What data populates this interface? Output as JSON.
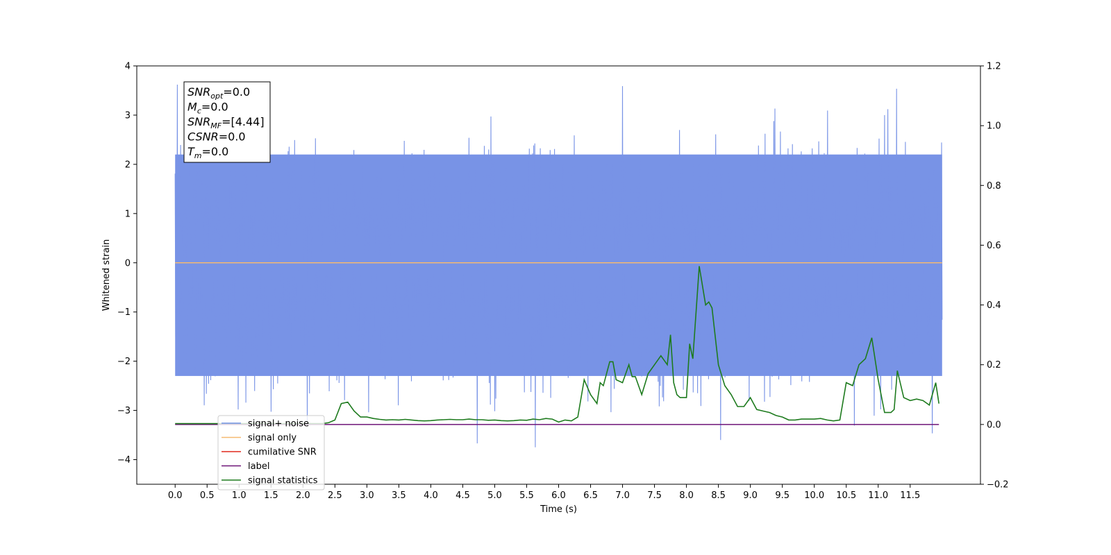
{
  "chart_data": {
    "type": "line",
    "xlabel": "Time (s)",
    "ylabel": "Whitened strain",
    "xlim": [
      -0.6,
      12.6
    ],
    "ylim": [
      -4.5,
      4.0
    ],
    "y2lim": [
      -0.2,
      1.2
    ],
    "x_ticks": [
      0.0,
      0.5,
      1.0,
      1.5,
      2.0,
      2.5,
      3.0,
      3.5,
      4.0,
      4.5,
      5.0,
      5.5,
      6.0,
      6.5,
      7.0,
      7.5,
      8.0,
      8.5,
      9.0,
      9.5,
      10.0,
      10.5,
      11.0,
      11.5
    ],
    "x_tick_labels": [
      "0.0",
      "0.5",
      "1.0",
      "1.5",
      "2.0",
      "2.5",
      "3.0",
      "3.5",
      "4.0",
      "4.5",
      "5.0",
      "5.5",
      "6.0",
      "6.5",
      "7.0",
      "7.5",
      "8.0",
      "8.5",
      "9.0",
      "9.5",
      "10.0",
      "10.5",
      "11.0",
      "11.5"
    ],
    "y_ticks": [
      -4,
      -3,
      -2,
      -1,
      0,
      1,
      2,
      3,
      4
    ],
    "y_tick_labels": [
      "−4",
      "−3",
      "−2",
      "−1",
      "0",
      "1",
      "2",
      "3",
      "4"
    ],
    "y2_ticks": [
      -0.2,
      0.0,
      0.2,
      0.4,
      0.6,
      0.8,
      1.0,
      1.2
    ],
    "y2_tick_labels": [
      "−0.2",
      "0.0",
      "0.2",
      "0.4",
      "0.6",
      "0.8",
      "1.0",
      "1.2"
    ],
    "grid": false,
    "legend_position": "lower-left",
    "annotation": {
      "lines": [
        {
          "sym": "SNR",
          "sub": "opt",
          "rest": "=0.0"
        },
        {
          "sym": "M",
          "sub": "c",
          "rest": "=0.0"
        },
        {
          "sym": "SNR",
          "sub": "MF",
          "rest": "=[4.44]"
        },
        {
          "sym": "CSNR",
          "sub": "",
          "rest": "=0.0"
        },
        {
          "sym": "T",
          "sub": "m",
          "rest": "=0.0"
        }
      ]
    },
    "noise": {
      "x_start": 0.0,
      "x_end": 12.0,
      "sample_count": 1400,
      "envelope_upper": 2.2,
      "envelope_lower": -2.3,
      "peak_max": 3.62,
      "peak_min": -3.75,
      "color": "#7893e6"
    },
    "series": [
      {
        "name": "signal+ noise",
        "color": "#6f8de3",
        "axis": "left"
      },
      {
        "name": "signal only",
        "color": "#f5b971",
        "axis": "left",
        "x": [
          0.0,
          12.0
        ],
        "y": [
          0.0,
          0.0
        ]
      },
      {
        "name": "cumilative SNR",
        "color": "#e0281d",
        "axis": "right",
        "x": [],
        "y": []
      },
      {
        "name": "label",
        "color": "#6d1377",
        "axis": "right",
        "x": [
          0.0,
          11.95
        ],
        "y": [
          0.0,
          0.0
        ]
      },
      {
        "name": "signal statistics",
        "color": "#1e7b1e",
        "axis": "right",
        "x": [
          0.0,
          2.3,
          2.4,
          2.5,
          2.6,
          2.7,
          2.8,
          2.9,
          3.0,
          3.1,
          3.2,
          3.3,
          3.4,
          3.5,
          3.6,
          3.7,
          3.8,
          3.9,
          4.0,
          4.1,
          4.2,
          4.3,
          4.4,
          4.5,
          4.6,
          4.7,
          4.8,
          4.9,
          5.0,
          5.1,
          5.2,
          5.3,
          5.4,
          5.5,
          5.6,
          5.7,
          5.8,
          5.9,
          6.0,
          6.1,
          6.2,
          6.3,
          6.4,
          6.5,
          6.6,
          6.65,
          6.7,
          6.8,
          6.85,
          6.9,
          7.0,
          7.1,
          7.15,
          7.2,
          7.3,
          7.4,
          7.5,
          7.6,
          7.7,
          7.75,
          7.8,
          7.85,
          7.9,
          8.0,
          8.05,
          8.1,
          8.2,
          8.3,
          8.35,
          8.4,
          8.5,
          8.6,
          8.7,
          8.8,
          8.9,
          9.0,
          9.1,
          9.2,
          9.3,
          9.4,
          9.5,
          9.6,
          9.7,
          9.8,
          9.9,
          10.0,
          10.1,
          10.2,
          10.3,
          10.4,
          10.5,
          10.6,
          10.7,
          10.8,
          10.9,
          11.0,
          11.1,
          11.2,
          11.25,
          11.3,
          11.4,
          11.5,
          11.6,
          11.7,
          11.8,
          11.9,
          11.95
        ],
        "y": [
          0.003,
          0.003,
          0.006,
          0.015,
          0.07,
          0.075,
          0.045,
          0.025,
          0.025,
          0.02,
          0.017,
          0.015,
          0.016,
          0.015,
          0.017,
          0.015,
          0.013,
          0.012,
          0.013,
          0.015,
          0.016,
          0.017,
          0.016,
          0.016,
          0.018,
          0.016,
          0.016,
          0.014,
          0.015,
          0.013,
          0.012,
          0.013,
          0.015,
          0.014,
          0.018,
          0.016,
          0.02,
          0.018,
          0.008,
          0.015,
          0.012,
          0.025,
          0.15,
          0.1,
          0.07,
          0.14,
          0.13,
          0.21,
          0.21,
          0.15,
          0.14,
          0.2,
          0.16,
          0.16,
          0.1,
          0.17,
          0.2,
          0.23,
          0.2,
          0.3,
          0.14,
          0.1,
          0.09,
          0.09,
          0.27,
          0.22,
          0.53,
          0.4,
          0.41,
          0.39,
          0.2,
          0.13,
          0.1,
          0.06,
          0.06,
          0.09,
          0.05,
          0.045,
          0.04,
          0.03,
          0.025,
          0.015,
          0.015,
          0.018,
          0.018,
          0.018,
          0.02,
          0.015,
          0.012,
          0.015,
          0.14,
          0.13,
          0.2,
          0.22,
          0.29,
          0.15,
          0.04,
          0.04,
          0.05,
          0.18,
          0.09,
          0.08,
          0.085,
          0.08,
          0.065,
          0.14,
          0.07
        ]
      }
    ]
  }
}
